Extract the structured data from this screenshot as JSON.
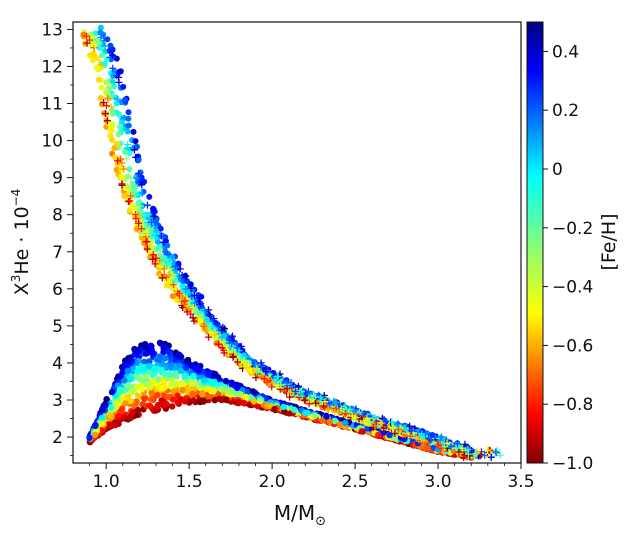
{
  "chart_data": {
    "type": "scatter",
    "xlabel": "M/M",
    "xlabel_subscript": "⊙",
    "ylabel_base": "X",
    "ylabel_sup1": "3",
    "ylabel_mid": "He · 10",
    "ylabel_sup2": "−4",
    "xlim": [
      0.8,
      3.5
    ],
    "ylim": [
      1.3,
      13.2
    ],
    "x_ticks": [
      "1.0",
      "1.5",
      "2.0",
      "2.5",
      "3.0",
      "3.5"
    ],
    "y_ticks": [
      "2",
      "3",
      "4",
      "5",
      "6",
      "7",
      "8",
      "9",
      "10",
      "11",
      "12",
      "13"
    ],
    "colorbar": {
      "label": "[Fe/H]",
      "range": [
        -1.0,
        0.5
      ],
      "ticks": [
        "−1.0",
        "−0.8",
        "−0.6",
        "−0.4",
        "−0.2",
        "0",
        "0.2",
        "0.4"
      ],
      "colormap": "jet"
    },
    "grid": false,
    "series": [
      {
        "marker": "plus",
        "description_points": [
          {
            "x": 0.92,
            "y": 13.0
          },
          {
            "x": 0.95,
            "y": 12.0
          },
          {
            "x": 1.0,
            "y": 11.0
          },
          {
            "x": 1.05,
            "y": 10.0
          },
          {
            "x": 1.1,
            "y": 9.0
          },
          {
            "x": 1.18,
            "y": 8.0
          },
          {
            "x": 1.28,
            "y": 7.0
          },
          {
            "x": 1.4,
            "y": 6.0
          },
          {
            "x": 1.55,
            "y": 5.0
          },
          {
            "x": 1.75,
            "y": 4.0
          },
          {
            "x": 2.0,
            "y": 3.3
          },
          {
            "x": 2.5,
            "y": 2.5
          },
          {
            "x": 3.0,
            "y": 1.8
          },
          {
            "x": 3.2,
            "y": 1.55
          },
          {
            "x": 3.38,
            "y": 1.42
          },
          {
            "x": 3.43,
            "y": 1.42
          }
        ]
      },
      {
        "marker": "circle",
        "description_points": [
          {
            "x": 0.92,
            "y": 1.9
          },
          {
            "x": 1.0,
            "y": 2.4
          },
          {
            "x": 1.1,
            "y": 3.0
          },
          {
            "x": 1.2,
            "y": 4.3
          },
          {
            "x": 1.3,
            "y": 4.5
          },
          {
            "x": 1.4,
            "y": 4.3
          },
          {
            "x": 1.5,
            "y": 4.0
          },
          {
            "x": 1.7,
            "y": 3.6
          },
          {
            "x": 2.0,
            "y": 3.0
          },
          {
            "x": 2.5,
            "y": 2.3
          },
          {
            "x": 3.0,
            "y": 1.7
          },
          {
            "x": 3.15,
            "y": 1.5
          }
        ]
      }
    ]
  }
}
